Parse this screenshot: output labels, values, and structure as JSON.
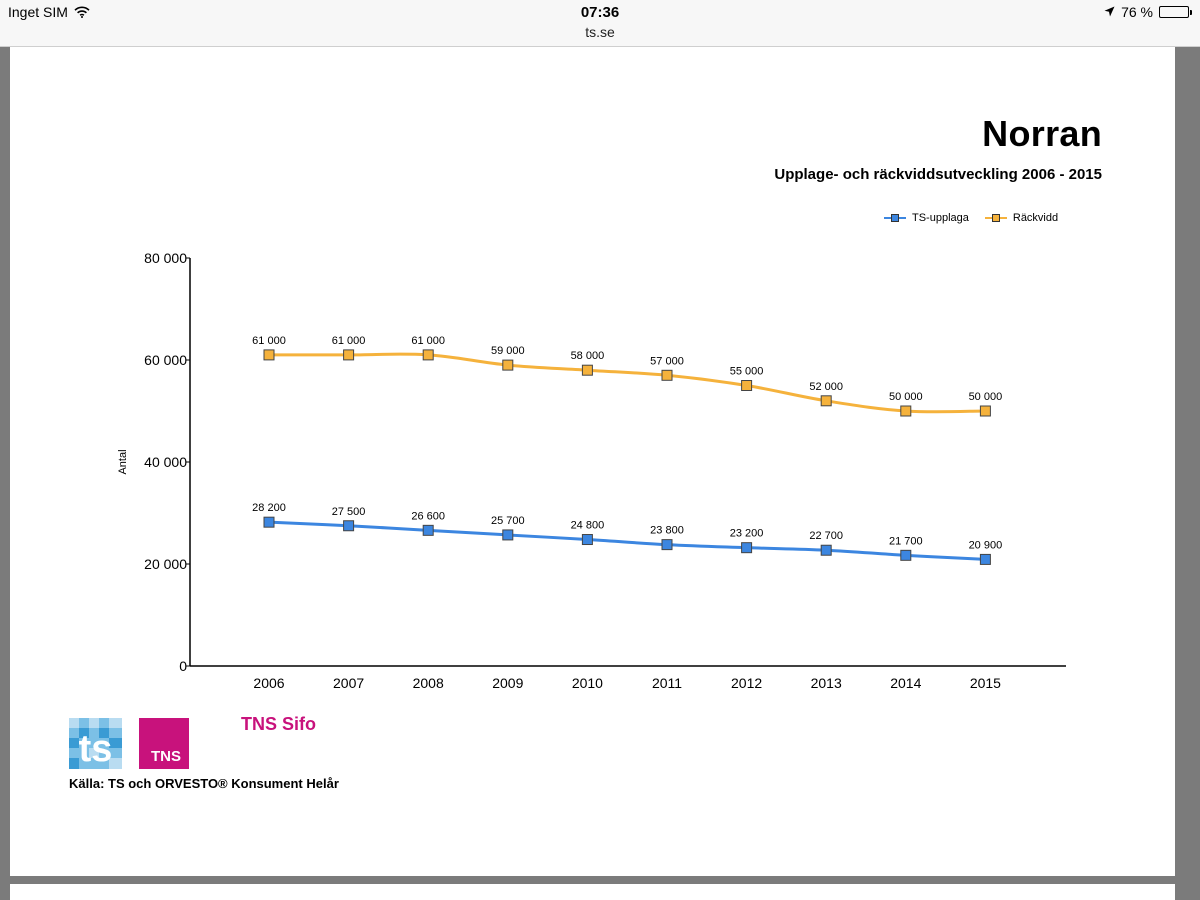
{
  "status_bar": {
    "carrier": "Inget SIM",
    "time": "07:36",
    "url": "ts.se",
    "battery": "76 %",
    "battery_level": 0.76
  },
  "colors": {
    "ts_upplaga": "#3c86e0",
    "rackvidd": "#f5b23c",
    "tns_brand": "#c8127c"
  },
  "chart_data": {
    "type": "line",
    "title": "Norran",
    "subtitle": "Upplage- och räckviddsutveckling 2006 - 2015",
    "xlabel": "",
    "ylabel": "Antal",
    "ylim": [
      0,
      80000
    ],
    "yticks": [
      0,
      20000,
      40000,
      60000,
      80000
    ],
    "ytick_labels": [
      "0",
      "20 000",
      "40 000",
      "60 000",
      "80 000"
    ],
    "categories": [
      "2006",
      "2007",
      "2008",
      "2009",
      "2010",
      "2011",
      "2012",
      "2013",
      "2014",
      "2015"
    ],
    "legend_position": "top-right",
    "grid": false,
    "series": [
      {
        "name": "TS-upplaga",
        "color": "#3c86e0",
        "values": [
          28200,
          27500,
          26600,
          25700,
          24800,
          23800,
          23200,
          22700,
          21700,
          20900
        ],
        "labels": [
          "28 200",
          "27 500",
          "26 600",
          "25 700",
          "24 800",
          "23 800",
          "23 200",
          "22 700",
          "21 700",
          "20 900"
        ]
      },
      {
        "name": "Räckvidd",
        "color": "#f5b23c",
        "values": [
          61000,
          61000,
          61000,
          59000,
          58000,
          57000,
          55000,
          52000,
          50000,
          50000
        ],
        "labels": [
          "61 000",
          "61 000",
          "61 000",
          "59 000",
          "58 000",
          "57 000",
          "55 000",
          "52 000",
          "50 000",
          "50 000"
        ]
      }
    ]
  },
  "logos": {
    "ts": "ts",
    "tns": "TNS",
    "tns_sifo": "TNS Sifo"
  },
  "source": "Källa: TS och ORVESTO® Konsument Helår"
}
